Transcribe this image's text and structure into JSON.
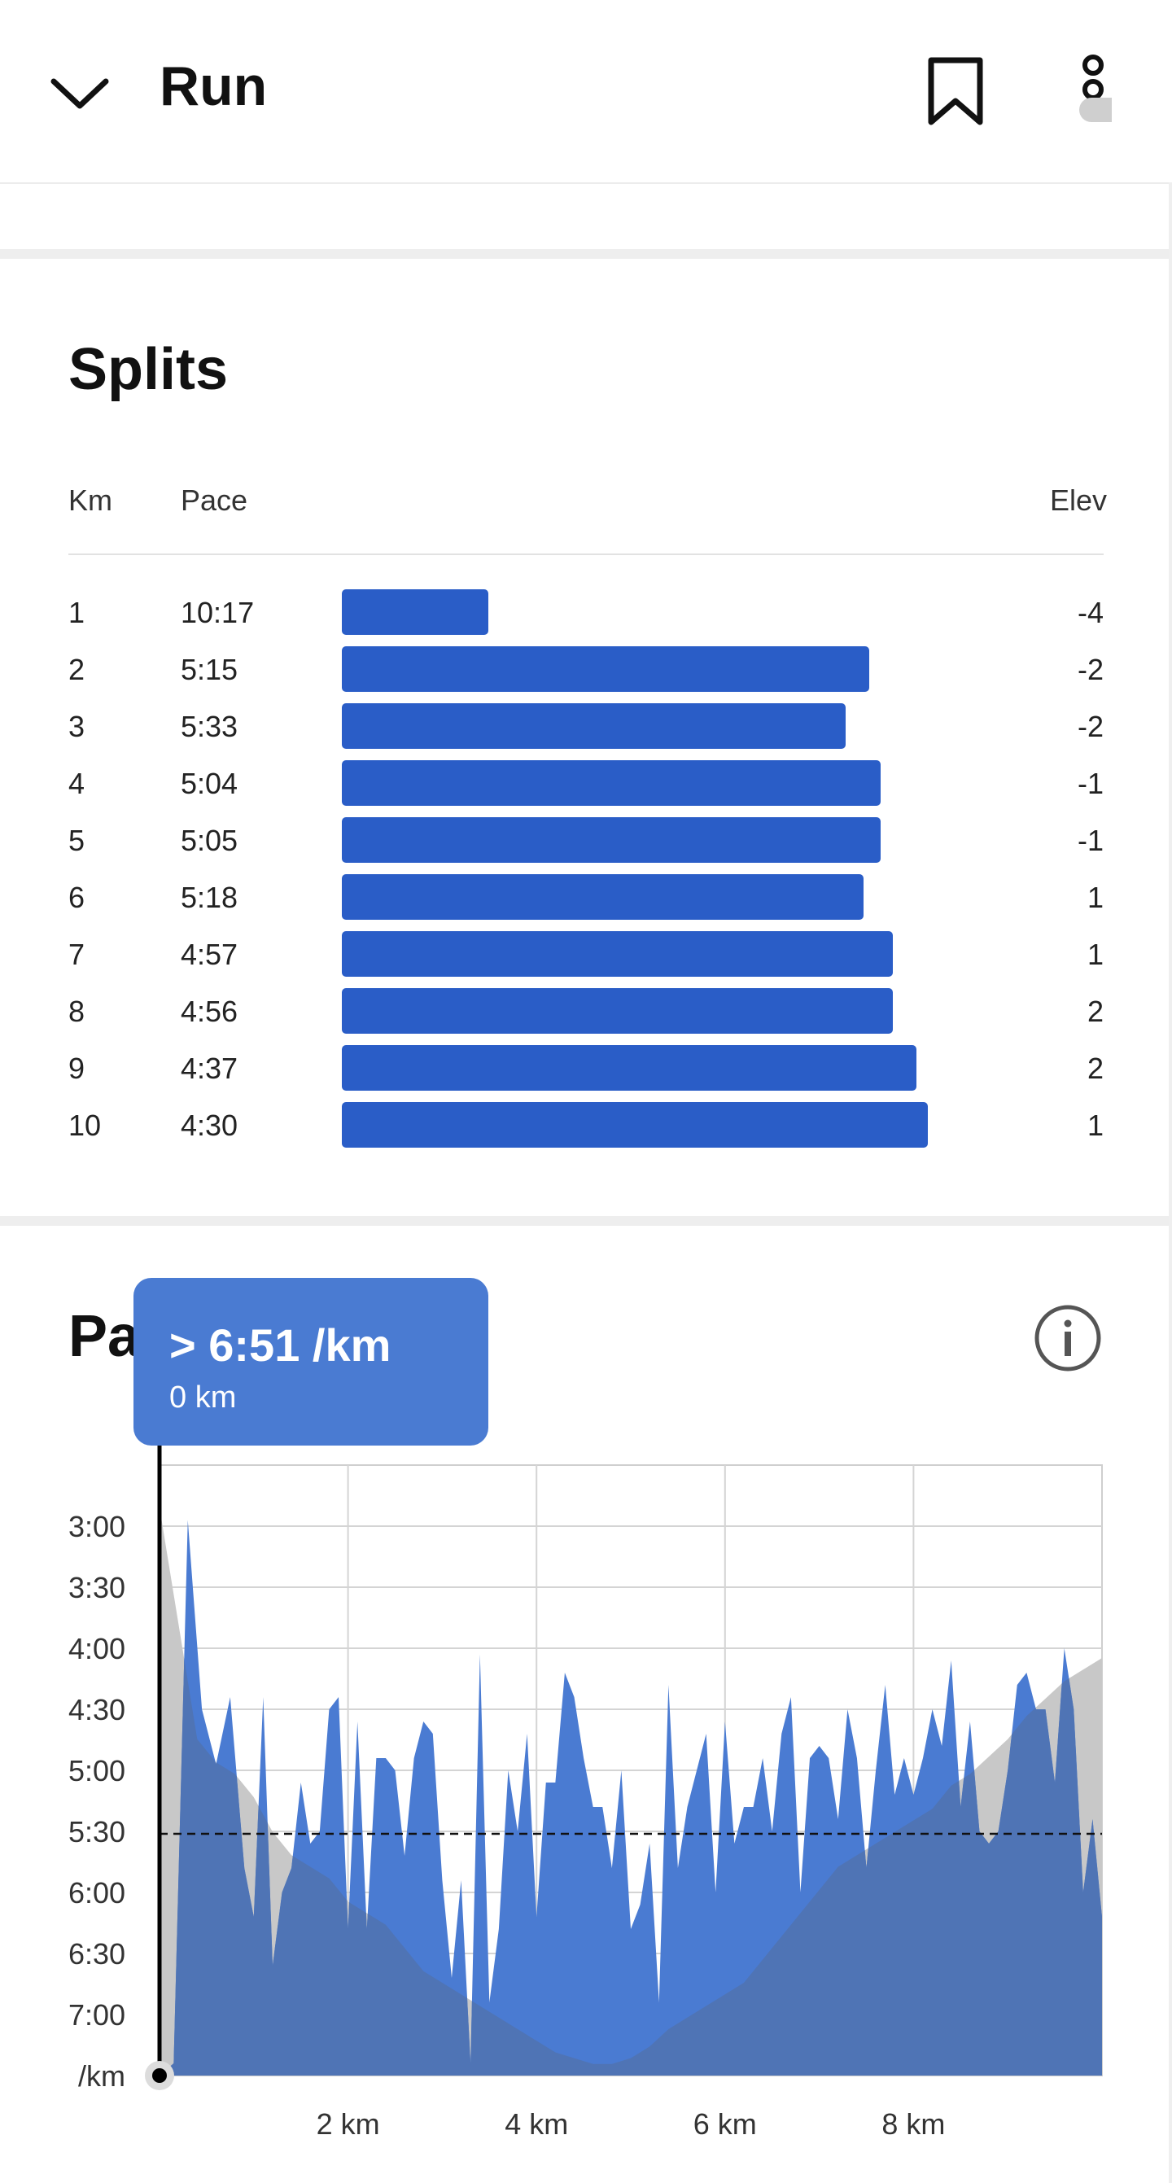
{
  "header": {
    "title": "Run",
    "back_icon": "chevron-down-icon",
    "bookmark_icon": "bookmark-icon",
    "more_icon": "more-vertical-icon"
  },
  "splits": {
    "title": "Splits",
    "columns": {
      "km": "Km",
      "pace": "Pace",
      "elev": "Elev"
    },
    "bar_color": "#2a5dc7",
    "rows": [
      {
        "km": "1",
        "pace": "10:17",
        "elev": "-4",
        "bar_fraction": 0.25
      },
      {
        "km": "2",
        "pace": "5:15",
        "elev": "-2",
        "bar_fraction": 0.9
      },
      {
        "km": "3",
        "pace": "5:33",
        "elev": "-2",
        "bar_fraction": 0.86
      },
      {
        "km": "4",
        "pace": "5:04",
        "elev": "-1",
        "bar_fraction": 0.92
      },
      {
        "km": "5",
        "pace": "5:05",
        "elev": "-1",
        "bar_fraction": 0.92
      },
      {
        "km": "6",
        "pace": "5:18",
        "elev": "1",
        "bar_fraction": 0.89
      },
      {
        "km": "7",
        "pace": "4:57",
        "elev": "1",
        "bar_fraction": 0.94
      },
      {
        "km": "8",
        "pace": "4:56",
        "elev": "2",
        "bar_fraction": 0.94
      },
      {
        "km": "9",
        "pace": "4:37",
        "elev": "2",
        "bar_fraction": 0.98
      },
      {
        "km": "10",
        "pace": "4:30",
        "elev": "1",
        "bar_fraction": 1.0
      }
    ]
  },
  "pace_section": {
    "title_visible": "Pa",
    "info_icon": "info-icon",
    "tooltip": {
      "pace": "> 6:51 /km",
      "distance": "0 km"
    }
  },
  "chart_data": {
    "type": "area",
    "y_unit_label": "/km",
    "yticks": [
      "3:00",
      "3:30",
      "4:00",
      "4:30",
      "5:00",
      "5:30",
      "6:00",
      "6:30",
      "7:00"
    ],
    "xticks": [
      "2 km",
      "4 km",
      "6 km",
      "8 km"
    ],
    "xlim": [
      0,
      10
    ],
    "ylim_min_per_km": [
      2.5,
      7.5
    ],
    "average_pace_line_min_per_km": 5.52,
    "grid": true,
    "pace_color": "#4a7bd2",
    "elevation_color": "#c8c8c8",
    "overlap_color": "#4f74b5",
    "pace_series": {
      "name": "",
      "x": [
        0.0,
        0.15,
        0.3,
        0.45,
        0.6,
        0.75,
        0.9,
        1.0,
        1.1,
        1.2,
        1.3,
        1.4,
        1.5,
        1.6,
        1.7,
        1.8,
        1.9,
        2.0,
        2.1,
        2.2,
        2.3,
        2.4,
        2.5,
        2.6,
        2.7,
        2.8,
        2.9,
        3.0,
        3.1,
        3.2,
        3.3,
        3.4,
        3.5,
        3.6,
        3.7,
        3.8,
        3.9,
        4.0,
        4.1,
        4.2,
        4.3,
        4.4,
        4.5,
        4.6,
        4.7,
        4.8,
        4.9,
        5.0,
        5.1,
        5.2,
        5.3,
        5.4,
        5.5,
        5.6,
        5.7,
        5.8,
        5.9,
        6.0,
        6.1,
        6.2,
        6.3,
        6.4,
        6.5,
        6.6,
        6.7,
        6.8,
        6.9,
        7.0,
        7.1,
        7.2,
        7.3,
        7.4,
        7.5,
        7.6,
        7.7,
        7.8,
        7.9,
        8.0,
        8.1,
        8.2,
        8.3,
        8.4,
        8.5,
        8.6,
        8.7,
        8.8,
        8.9,
        9.0,
        9.1,
        9.2,
        9.3,
        9.4,
        9.5,
        9.6,
        9.7,
        9.8,
        9.9,
        10.0
      ],
      "pace_min_per_km": [
        7.5,
        7.4,
        2.95,
        4.5,
        4.95,
        4.4,
        5.8,
        6.2,
        4.4,
        6.6,
        6.0,
        5.8,
        5.1,
        5.6,
        5.5,
        4.5,
        4.4,
        6.3,
        4.6,
        6.3,
        4.9,
        4.9,
        5.0,
        5.7,
        4.9,
        4.6,
        4.7,
        5.9,
        6.7,
        5.9,
        7.4,
        4.05,
        6.9,
        6.3,
        5.0,
        5.5,
        4.7,
        6.2,
        5.1,
        5.1,
        4.2,
        4.4,
        4.9,
        5.3,
        5.3,
        5.8,
        5.0,
        6.3,
        6.1,
        5.6,
        6.9,
        4.3,
        5.8,
        5.3,
        5.0,
        4.7,
        6.0,
        4.6,
        5.6,
        5.3,
        5.3,
        4.9,
        5.5,
        4.7,
        4.4,
        6.0,
        4.9,
        4.8,
        4.9,
        5.4,
        4.5,
        4.9,
        5.8,
        5.0,
        4.3,
        5.2,
        4.9,
        5.2,
        4.9,
        4.5,
        4.8,
        4.1,
        5.3,
        4.6,
        5.5,
        5.6,
        5.5,
        5.0,
        4.3,
        4.2,
        4.5,
        4.5,
        5.1,
        4.0,
        4.5,
        6.0,
        5.4,
        6.2
      ],
      "note": ""
    },
    "elevation_profile": {
      "x": [
        0.0,
        0.2,
        0.4,
        0.6,
        0.8,
        1.0,
        1.2,
        1.4,
        1.6,
        1.8,
        2.0,
        2.2,
        2.4,
        2.6,
        2.8,
        3.0,
        3.2,
        3.4,
        3.6,
        3.8,
        4.0,
        4.2,
        4.4,
        4.6,
        4.8,
        5.0,
        5.2,
        5.4,
        5.6,
        5.8,
        6.0,
        6.2,
        6.4,
        6.6,
        6.8,
        7.0,
        7.2,
        7.4,
        7.6,
        7.8,
        8.0,
        8.2,
        8.4,
        8.6,
        8.8,
        9.0,
        9.2,
        9.4,
        9.6,
        9.8,
        10.0
      ],
      "relative_level": [
        0.98,
        0.78,
        0.58,
        0.54,
        0.52,
        0.48,
        0.42,
        0.38,
        0.36,
        0.34,
        0.3,
        0.28,
        0.26,
        0.22,
        0.18,
        0.16,
        0.14,
        0.12,
        0.1,
        0.08,
        0.06,
        0.04,
        0.03,
        0.02,
        0.02,
        0.03,
        0.05,
        0.08,
        0.1,
        0.12,
        0.14,
        0.16,
        0.2,
        0.24,
        0.28,
        0.32,
        0.36,
        0.38,
        0.4,
        0.42,
        0.44,
        0.46,
        0.5,
        0.52,
        0.55,
        0.58,
        0.62,
        0.65,
        0.68,
        0.7,
        0.72
      ]
    }
  }
}
